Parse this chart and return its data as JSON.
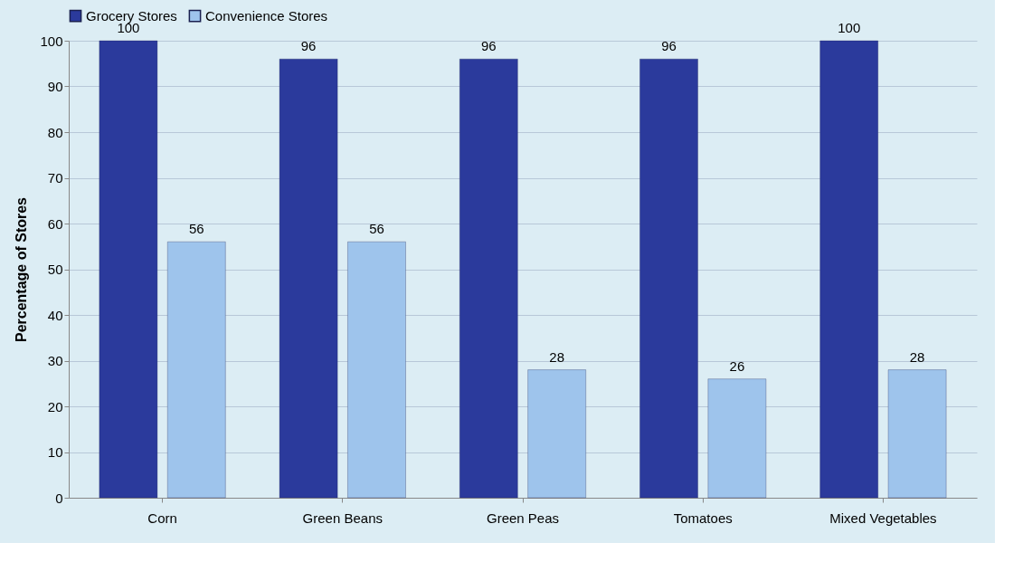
{
  "chart_data": {
    "type": "bar",
    "ylabel": "Percentage of Stores",
    "categories": [
      "Corn",
      "Green Beans",
      "Green Peas",
      "Tomatoes",
      "Mixed Vegetables"
    ],
    "series": [
      {
        "name": "Grocery Stores",
        "color": "#2b3a9c",
        "values": [
          100,
          96,
          96,
          96,
          100
        ]
      },
      {
        "name": "Convenience Stores",
        "color": "#9ec4ec",
        "values": [
          56,
          56,
          28,
          26,
          28
        ]
      }
    ],
    "ylim": [
      0,
      100
    ],
    "yticks": [
      0,
      10,
      20,
      30,
      40,
      50,
      60,
      70,
      80,
      90,
      100
    ],
    "grid": "y",
    "legend": "top",
    "data_labels": true
  }
}
